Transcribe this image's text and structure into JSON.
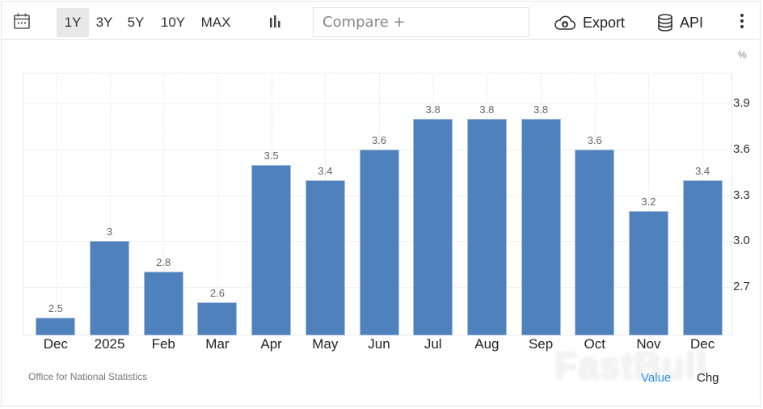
{
  "toolbar": {
    "calendar_icon": "calendar-icon",
    "ranges": [
      {
        "label": "1Y",
        "active": true
      },
      {
        "label": "3Y",
        "active": false
      },
      {
        "label": "5Y",
        "active": false
      },
      {
        "label": "10Y",
        "active": false
      },
      {
        "label": "MAX",
        "active": false
      }
    ],
    "chart_type_icon": "bar-chart-icon",
    "compare_placeholder": "Compare +",
    "export_label": "Export",
    "api_label": "API",
    "more_icon": "more-vertical-icon"
  },
  "chart": {
    "unit": "%",
    "source": "Office for National Statistics",
    "watermark": "FastBull",
    "toggles": {
      "value": "Value",
      "chg": "Chg"
    },
    "bar_color": "#4f81bd",
    "active_toggle_color": "#2d8ff0"
  },
  "chart_data": {
    "type": "bar",
    "title": "",
    "xlabel": "",
    "ylabel": "%",
    "categories": [
      "Dec",
      "2025",
      "Feb",
      "Mar",
      "Apr",
      "May",
      "Jun",
      "Jul",
      "Aug",
      "Sep",
      "Oct",
      "Nov",
      "Dec"
    ],
    "values": [
      2.5,
      3,
      2.8,
      2.6,
      3.5,
      3.4,
      3.6,
      3.8,
      3.8,
      3.8,
      3.6,
      3.2,
      3.4
    ],
    "value_labels": [
      "2.5",
      "3",
      "2.8",
      "2.6",
      "3.5",
      "3.4",
      "3.6",
      "3.8",
      "3.8",
      "3.8",
      "3.6",
      "3.2",
      "3.4"
    ],
    "y_ticks": [
      "3.9",
      "3.6",
      "3.3",
      "3.0",
      "2.7"
    ],
    "ylim": [
      2.385,
      4.1
    ],
    "y_axis_position": "right",
    "grid": true,
    "legend": null
  }
}
